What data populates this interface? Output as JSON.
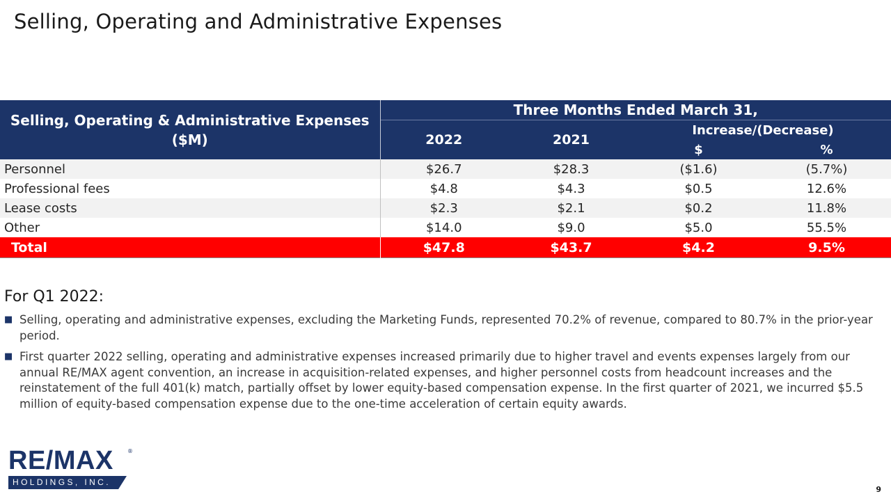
{
  "slide": {
    "title": "Selling, Operating and Administrative Expenses",
    "page_number": "9"
  },
  "table": {
    "label_header": "Selling, Operating & Administrative Expenses ($M)",
    "period_header": "Three Months Ended March 31,",
    "year_headers": [
      "2022",
      "2021"
    ],
    "change_header": "Increase/(Decrease)",
    "change_subheaders": [
      "$",
      "%"
    ],
    "rows": [
      {
        "label": "Personnel",
        "y2022": "$26.7",
        "y2021": "$28.3",
        "change_dollar": "($1.6)",
        "change_pct": "(5.7%)"
      },
      {
        "label": "Professional fees",
        "y2022": "$4.8",
        "y2021": "$4.3",
        "change_dollar": "$0.5",
        "change_pct": "12.6%"
      },
      {
        "label": "Lease costs",
        "y2022": "$2.3",
        "y2021": "$2.1",
        "change_dollar": "$0.2",
        "change_pct": "11.8%"
      },
      {
        "label": "Other",
        "y2022": "$14.0",
        "y2021": "$9.0",
        "change_dollar": "$5.0",
        "change_pct": "55.5%"
      }
    ],
    "total": {
      "label": "Total",
      "y2022": "$47.8",
      "y2021": "$43.7",
      "change_dollar": "$4.2",
      "change_pct": "9.5%"
    }
  },
  "notes": {
    "heading": "For Q1 2022:",
    "bullet_icon": "square-bullet-icon",
    "items": [
      "Selling, operating and administrative expenses, excluding the Marketing Funds, represented 70.2% of revenue, compared to 80.7% in the prior-year period.",
      "First quarter 2022 selling, operating and administrative expenses increased primarily due to higher travel and events expenses largely from our annual RE/MAX agent convention, an increase in acquisition-related expenses, and higher personnel costs from headcount increases and the reinstatement of the full 401(k) match, partially offset by lower equity-based compensation expense. In the first quarter of 2021, we incurred $5.5 million of equity-based compensation expense due to the one-time acceleration of certain equity awards."
    ]
  },
  "logo": {
    "wordmark": "RE/MAX",
    "registered_mark": "®",
    "subtitle": "HOLDINGS, INC."
  },
  "colors": {
    "header_navy": "#1c3468",
    "total_red": "#ff0000",
    "row_stripe": "#f2f2f2"
  }
}
